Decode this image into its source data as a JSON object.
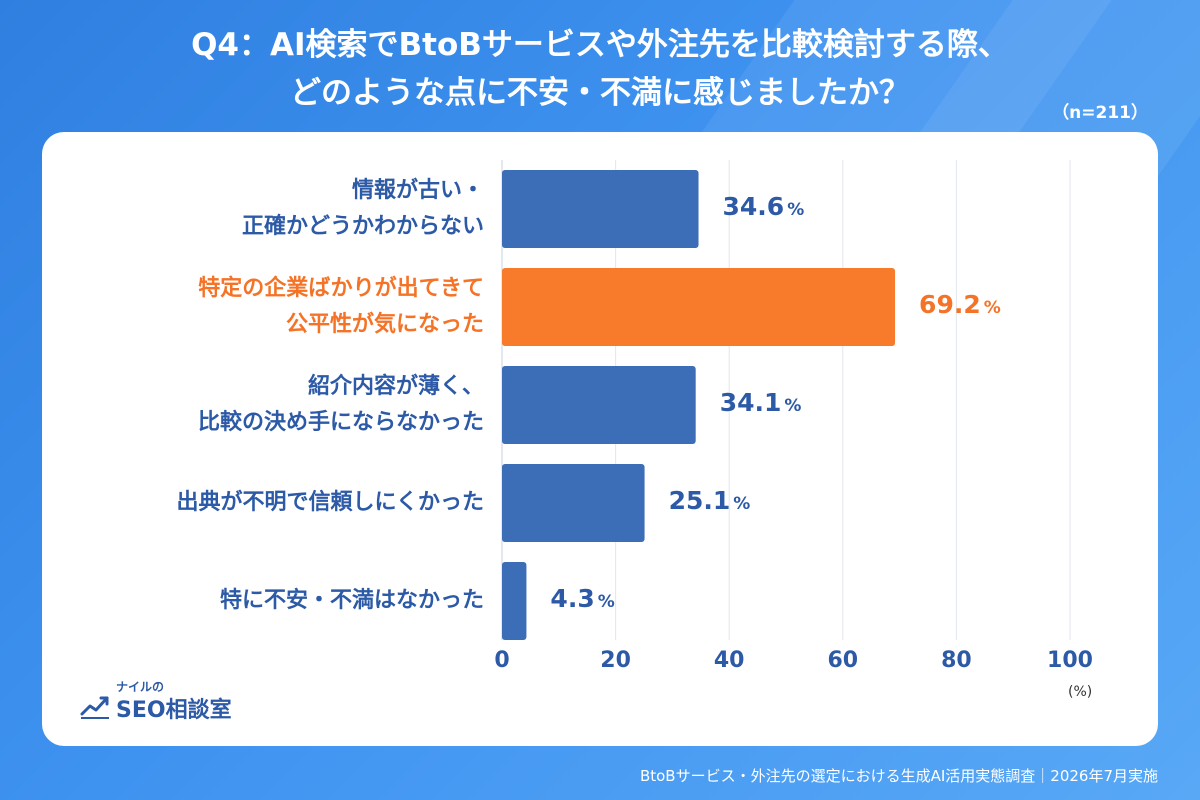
{
  "title": {
    "line1": "Q4：AI検索でBtoBサービスや外注先を比較検討する際、",
    "line2": "どのような点に不安・不満に感じましたか？",
    "n": "（n=211）"
  },
  "chart_data": {
    "type": "bar",
    "orientation": "horizontal",
    "categories": [
      [
        "情報が古い・",
        "正確かどうかわからない"
      ],
      [
        "特定の企業ばかりが出てきて",
        "公平性が気になった"
      ],
      [
        "紹介内容が薄く、",
        "比較の決め手にならなかった"
      ],
      [
        "出典が不明で信頼しにくかった"
      ],
      [
        "特に不安・不満はなかった"
      ]
    ],
    "values": [
      34.6,
      69.2,
      34.1,
      25.1,
      4.3
    ],
    "value_labels": [
      "34.6",
      "69.2",
      "34.1",
      "25.1",
      "4.3"
    ],
    "value_suffix": "%",
    "highlight_index": 1,
    "xlim": [
      0,
      100
    ],
    "xticks": [
      "0",
      "20",
      "40",
      "60",
      "80",
      "100"
    ],
    "x_unit": "(%)",
    "grid": true,
    "colors": {
      "bar": "#3c6db7",
      "highlight": "#f77b2a",
      "text": "#2d5aa6"
    }
  },
  "logo": {
    "small": "ナイルの",
    "big": "SEO相談室"
  },
  "footer": "BtoBサービス・外注先の選定における生成AI活用実態調査｜2026年7月実施"
}
